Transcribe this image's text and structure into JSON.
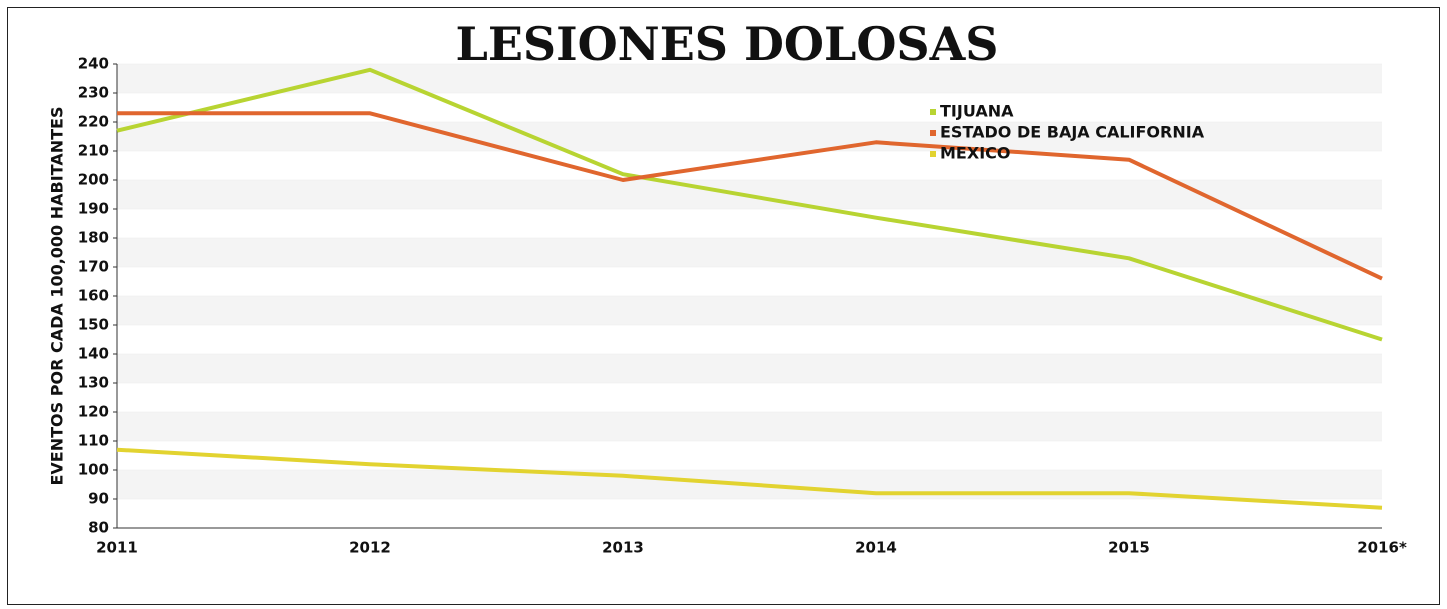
{
  "chart_data": {
    "type": "line",
    "title": "LESIONES DOLOSAS",
    "y_label": "EVENTOS POR CADA 100,000 HABITANTES",
    "categories": [
      "2011",
      "2012",
      "2013",
      "2014",
      "2015",
      "2016*"
    ],
    "series": [
      {
        "name": "TIJUANA",
        "color": "#b8d432",
        "values": [
          217,
          238,
          202,
          187,
          173,
          145
        ]
      },
      {
        "name": "ESTADO DE BAJA CALIFORNIA",
        "color": "#e0662e",
        "values": [
          223,
          223,
          200,
          213,
          207,
          166
        ]
      },
      {
        "name": "MEXICO",
        "color": "#e2d330",
        "values": [
          107,
          102,
          98,
          92,
          92,
          87
        ]
      }
    ],
    "ylim": [
      80,
      240
    ],
    "yticks": [
      80,
      90,
      100,
      110,
      120,
      130,
      140,
      150,
      160,
      170,
      180,
      190,
      200,
      210,
      220,
      230,
      240
    ],
    "grid": true
  }
}
